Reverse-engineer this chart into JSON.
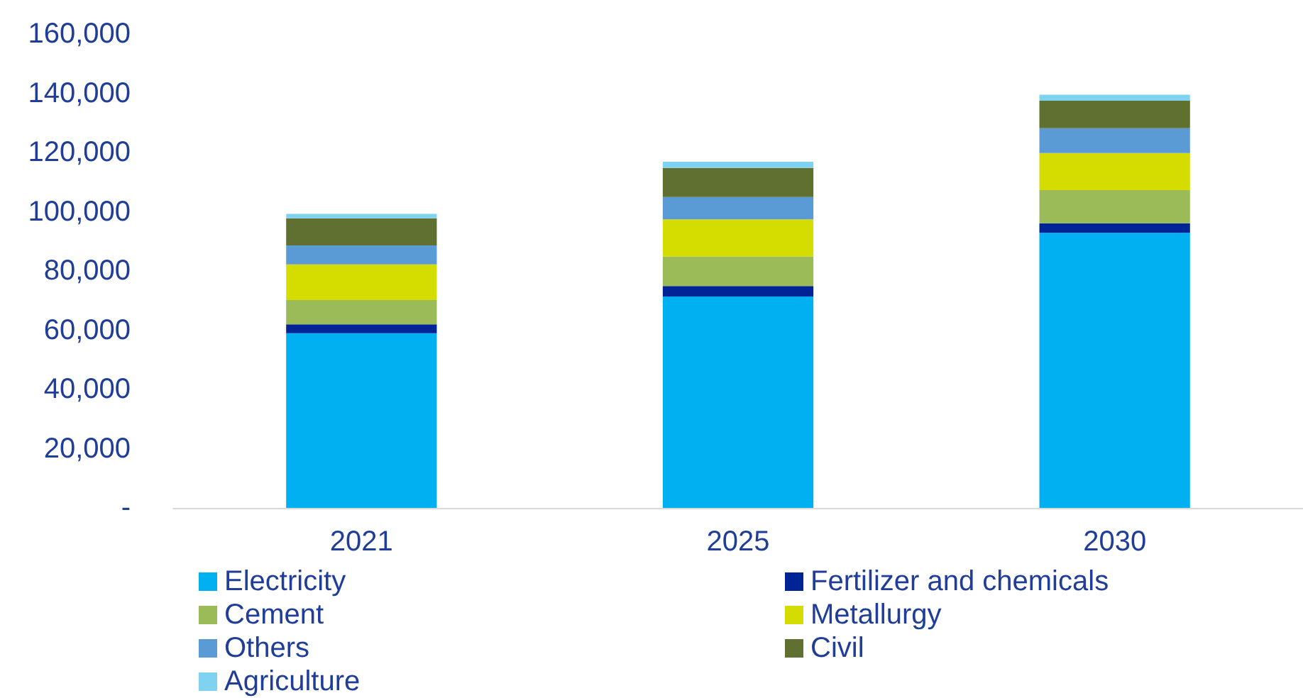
{
  "chart_data": {
    "type": "bar",
    "stacked": true,
    "categories": [
      "2021",
      "2025",
      "2030"
    ],
    "series": [
      {
        "name": "Electricity",
        "color": "#00b0f0",
        "values": [
          59000,
          71400,
          92900
        ]
      },
      {
        "name": "Fertilizer and chemicals",
        "color": "#002395",
        "values": [
          3000,
          3500,
          3200
        ]
      },
      {
        "name": "Cement",
        "color": "#9bbb59",
        "values": [
          8200,
          10000,
          11200
        ]
      },
      {
        "name": "Metallurgy",
        "color": "#d4dc00",
        "values": [
          12000,
          12500,
          12500
        ]
      },
      {
        "name": "Others",
        "color": "#5b9bd5",
        "values": [
          6400,
          7600,
          8400
        ]
      },
      {
        "name": "Civil",
        "color": "#5f7030",
        "values": [
          9200,
          9800,
          9300
        ]
      },
      {
        "name": "Agriculture",
        "color": "#7fd3f0",
        "values": [
          1500,
          2100,
          2000
        ]
      }
    ],
    "ylim": [
      0,
      160000
    ],
    "yticks": [
      {
        "value": 0,
        "label": "-"
      },
      {
        "value": 20000,
        "label": "20,000"
      },
      {
        "value": 40000,
        "label": "40,000"
      },
      {
        "value": 60000,
        "label": "60,000"
      },
      {
        "value": 80000,
        "label": "80,000"
      },
      {
        "value": 100000,
        "label": "100,000"
      },
      {
        "value": 120000,
        "label": "120,000"
      },
      {
        "value": 140000,
        "label": "140,000"
      },
      {
        "value": 160000,
        "label": "160,000"
      }
    ],
    "grid": false,
    "legend": "bottom"
  }
}
